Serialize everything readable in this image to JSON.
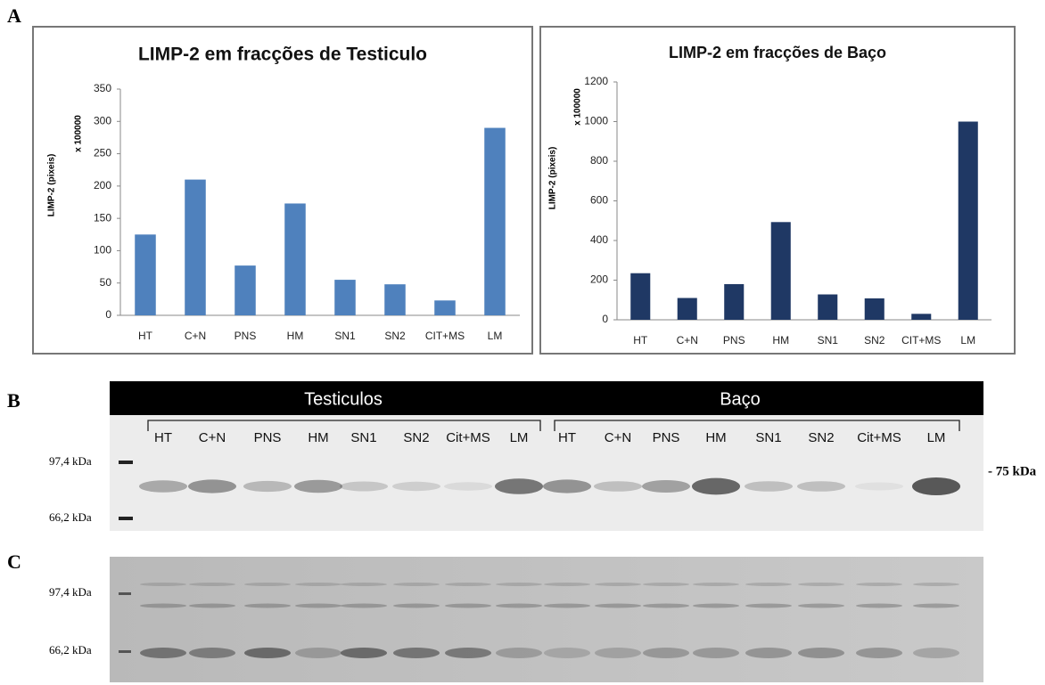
{
  "chart_data": [
    {
      "type": "bar",
      "title": "LIMP-2 em fracções de Testiculo",
      "y_label": "LIMP-2 (pixeis)",
      "y_multiplier": "x 100000",
      "categories": [
        "HT",
        "C+N",
        "PNS",
        "HM",
        "SN1",
        "SN2",
        "CIT+MS",
        "LM"
      ],
      "values": [
        125,
        210,
        77,
        173,
        55,
        48,
        23,
        290
      ],
      "color": "#4f81bd",
      "ylim": [
        0,
        350
      ],
      "yticks": [
        0,
        50,
        100,
        150,
        200,
        250,
        300,
        350
      ],
      "grid": false
    },
    {
      "type": "bar",
      "title": "LIMP-2 em fracções de Baço",
      "y_label": "LIMP-2 (pixeis)",
      "y_multiplier": "x 100000",
      "categories": [
        "HT",
        "C+N",
        "PNS",
        "HM",
        "SN1",
        "SN2",
        "CIT+MS",
        "LM"
      ],
      "values": [
        235,
        110,
        180,
        493,
        128,
        108,
        30,
        1000
      ],
      "color": "#1f3864",
      "ylim": [
        0,
        1200
      ],
      "yticks": [
        0,
        200,
        400,
        600,
        800,
        1000,
        1200
      ],
      "grid": false
    }
  ],
  "figure": {
    "panel_labels": [
      "A",
      "B",
      "C"
    ],
    "blot_b": {
      "groups": [
        "Testiculos",
        "Baço"
      ],
      "lanes": [
        "HT",
        "C+N",
        "PNS",
        "HM",
        "SN1",
        "SN2",
        "Cit+MS",
        "LM",
        "HT",
        "C+N",
        "PNS",
        "HM",
        "SN1",
        "SN2",
        "Cit+MS",
        "LM"
      ],
      "markers": [
        "97,4 kDa",
        "66,2 kDa"
      ],
      "band_label": "- 75 kDa"
    },
    "blot_c": {
      "markers": [
        "97,4 kDa",
        "66,2 kDa"
      ]
    }
  }
}
